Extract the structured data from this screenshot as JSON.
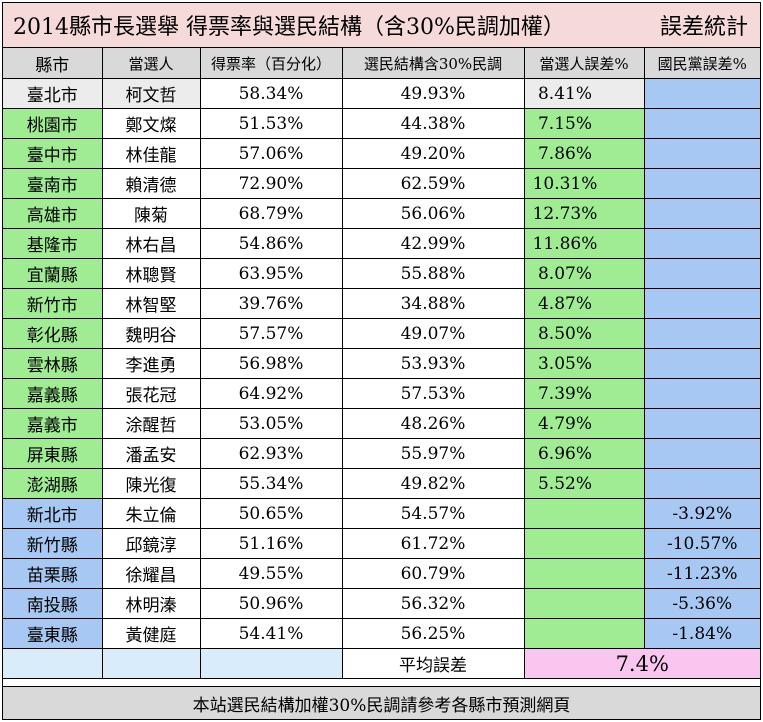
{
  "title": {
    "main": "2014縣市長選舉  得票率與選民結構（含30%民調加權）",
    "stats": "誤差統計"
  },
  "columns": [
    "縣市",
    "當選人",
    "得票率（百分化）",
    "選民結構含30%民調",
    "當選人誤差%",
    "國民黨誤差%"
  ],
  "rows_top": [
    {
      "city": "臺北市",
      "winner": "柯文哲",
      "vote": "58.34%",
      "structure": "49.93%",
      "winner_err": "8.41%"
    }
  ],
  "rows_green": [
    {
      "city": "桃園市",
      "winner": "鄭文燦",
      "vote": "51.53%",
      "structure": "44.38%",
      "winner_err": "7.15%"
    },
    {
      "city": "臺中市",
      "winner": "林佳龍",
      "vote": "57.06%",
      "structure": "49.20%",
      "winner_err": "7.86%"
    },
    {
      "city": "臺南市",
      "winner": "賴清德",
      "vote": "72.90%",
      "structure": "62.59%",
      "winner_err": "10.31%"
    },
    {
      "city": "高雄市",
      "winner": "陳菊",
      "vote": "68.79%",
      "structure": "56.06%",
      "winner_err": "12.73%"
    },
    {
      "city": "基隆市",
      "winner": "林右昌",
      "vote": "54.86%",
      "structure": "42.99%",
      "winner_err": "11.86%"
    },
    {
      "city": "宜蘭縣",
      "winner": "林聰賢",
      "vote": "63.95%",
      "structure": "55.88%",
      "winner_err": "8.07%"
    },
    {
      "city": "新竹市",
      "winner": "林智堅",
      "vote": "39.76%",
      "structure": "34.88%",
      "winner_err": "4.87%"
    },
    {
      "city": "彰化縣",
      "winner": "魏明谷",
      "vote": "57.57%",
      "structure": "49.07%",
      "winner_err": "8.50%"
    },
    {
      "city": "雲林縣",
      "winner": "李進勇",
      "vote": "56.98%",
      "structure": "53.93%",
      "winner_err": "3.05%"
    },
    {
      "city": "嘉義縣",
      "winner": "張花冠",
      "vote": "64.92%",
      "structure": "57.53%",
      "winner_err": "7.39%"
    },
    {
      "city": "嘉義市",
      "winner": "涂醒哲",
      "vote": "53.05%",
      "structure": "48.26%",
      "winner_err": "4.79%"
    },
    {
      "city": "屏東縣",
      "winner": "潘孟安",
      "vote": "62.93%",
      "structure": "55.97%",
      "winner_err": "6.96%"
    },
    {
      "city": "澎湖縣",
      "winner": "陳光復",
      "vote": "55.34%",
      "structure": "49.82%",
      "winner_err": "5.52%"
    }
  ],
  "rows_blue": [
    {
      "city": "新北市",
      "winner": "朱立倫",
      "vote": "50.65%",
      "structure": "54.57%",
      "kmt_err": "-3.92%"
    },
    {
      "city": "新竹縣",
      "winner": "邱鏡淳",
      "vote": "51.16%",
      "structure": "61.72%",
      "kmt_err": "-10.57%"
    },
    {
      "city": "苗栗縣",
      "winner": "徐耀昌",
      "vote": "49.55%",
      "structure": "60.79%",
      "kmt_err": "-11.23%"
    },
    {
      "city": "南投縣",
      "winner": "林明溱",
      "vote": "50.96%",
      "structure": "56.32%",
      "kmt_err": "-5.36%"
    },
    {
      "city": "臺東縣",
      "winner": "黃健庭",
      "vote": "54.41%",
      "structure": "56.25%",
      "kmt_err": "-1.84%"
    }
  ],
  "average": {
    "label": "平均誤差",
    "value": "7.4%"
  },
  "footer": "本站選民結構加權30%民調請參考各縣市預測網頁",
  "colors": {
    "title_bg": "#f6d9d9",
    "header_bg": "#d9d9d9",
    "green": "#9fec93",
    "blue": "#a6c8f2",
    "light": "#d8ecf9",
    "pink": "#f9c6f0"
  }
}
